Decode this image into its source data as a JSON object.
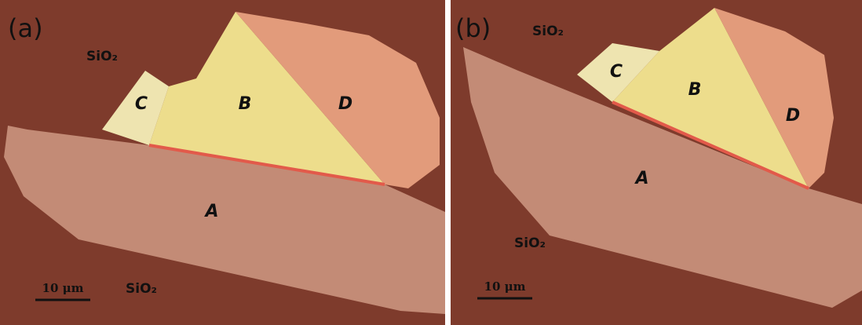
{
  "panels": [
    {
      "label": "(a)",
      "substrate_labels": [
        "SiO₂",
        "SiO₂"
      ],
      "regions": [
        "A",
        "B",
        "C",
        "D"
      ],
      "scale_bar": "10 μm"
    },
    {
      "label": "(b)",
      "substrate_labels": [
        "SiO₂",
        "SiO₂"
      ],
      "regions": [
        "A",
        "B",
        "C",
        "D"
      ],
      "scale_bar": "10 μm"
    }
  ]
}
